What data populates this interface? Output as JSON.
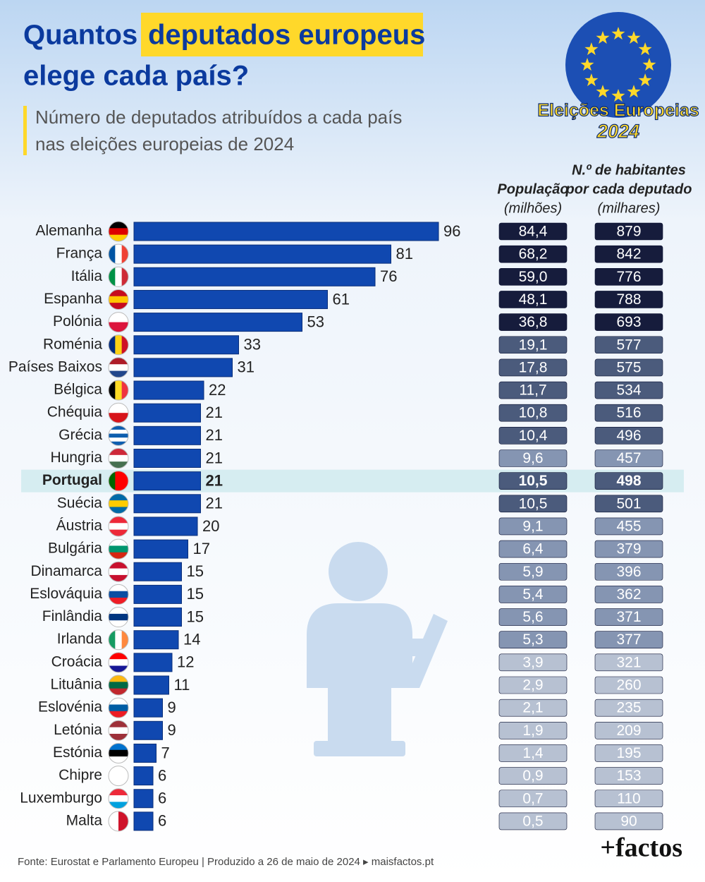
{
  "chart_data": {
    "type": "bar",
    "title": [
      "Quantos",
      "deputados europeus",
      "elege cada país?"
    ],
    "subtitle": [
      "Número de deputados atribuídos a cada país",
      "nas eleições europeias de 2024"
    ],
    "badge": [
      "Eleições Europeias",
      "2024"
    ],
    "categories": [
      "Alemanha",
      "França",
      "Itália",
      "Espanha",
      "Polónia",
      "Roménia",
      "Países Baixos",
      "Bélgica",
      "Chéquia",
      "Grécia",
      "Hungria",
      "Portugal",
      "Suécia",
      "Áustria",
      "Bulgária",
      "Dinamarca",
      "Eslováquia",
      "Finlândia",
      "Irlanda",
      "Croácia",
      "Lituânia",
      "Eslovénia",
      "Letónia",
      "Estónia",
      "Chipre",
      "Luxemburgo",
      "Malta"
    ],
    "values": [
      96,
      81,
      76,
      61,
      53,
      33,
      31,
      22,
      21,
      21,
      21,
      21,
      21,
      20,
      17,
      15,
      15,
      15,
      14,
      12,
      11,
      9,
      9,
      7,
      6,
      6,
      6
    ],
    "color": "#1048b0",
    "xlim": [
      0,
      100
    ],
    "highlight_index": 11,
    "columns": [
      {
        "title": [
          "População",
          "(milhões)"
        ],
        "values": [
          84.4,
          68.2,
          59.0,
          48.1,
          36.8,
          19.1,
          17.8,
          11.7,
          10.8,
          10.4,
          9.6,
          10.5,
          10.5,
          9.1,
          6.4,
          5.9,
          5.4,
          5.6,
          5.3,
          3.9,
          2.9,
          2.1,
          1.9,
          1.4,
          0.9,
          0.7,
          0.5
        ],
        "value_labels": [
          "84,4",
          "68,2",
          "59,0",
          "48,1",
          "36,8",
          "19,1",
          "17,8",
          "11,7",
          "10,8",
          "10,4",
          "9,6",
          "10,5",
          "10,5",
          "9,1",
          "6,4",
          "5,9",
          "5,4",
          "5,6",
          "5,3",
          "3,9",
          "2,9",
          "2,1",
          "1,9",
          "1,4",
          "0,9",
          "0,7",
          "0,5"
        ]
      },
      {
        "title": [
          "N.º de habitantes",
          "por cada deputado",
          "(milhares)"
        ],
        "values": [
          879,
          842,
          776,
          788,
          693,
          577,
          575,
          534,
          516,
          496,
          457,
          498,
          501,
          455,
          379,
          396,
          362,
          371,
          377,
          321,
          260,
          235,
          209,
          195,
          153,
          110,
          90
        ]
      }
    ],
    "row_shades": [
      "#161c3c",
      "#161c3c",
      "#161c3c",
      "#161c3c",
      "#161c3c",
      "#4b5b7c",
      "#4b5b7c",
      "#4b5b7c",
      "#4b5b7c",
      "#4b5b7c",
      "#8595b2",
      "#4b5b7c",
      "#4b5b7c",
      "#8595b2",
      "#8595b2",
      "#8595b2",
      "#8595b2",
      "#8595b2",
      "#8595b2",
      "#b7c1d2",
      "#b7c1d2",
      "#b7c1d2",
      "#b7c1d2",
      "#b7c1d2",
      "#b7c1d2",
      "#b7c1d2",
      "#b7c1d2"
    ],
    "source": "Fonte: Eurostat e Parlamento Europeu | Produzido a 26 de maio de 2024 ▸ maisfactos.pt",
    "logo": "+factos"
  }
}
